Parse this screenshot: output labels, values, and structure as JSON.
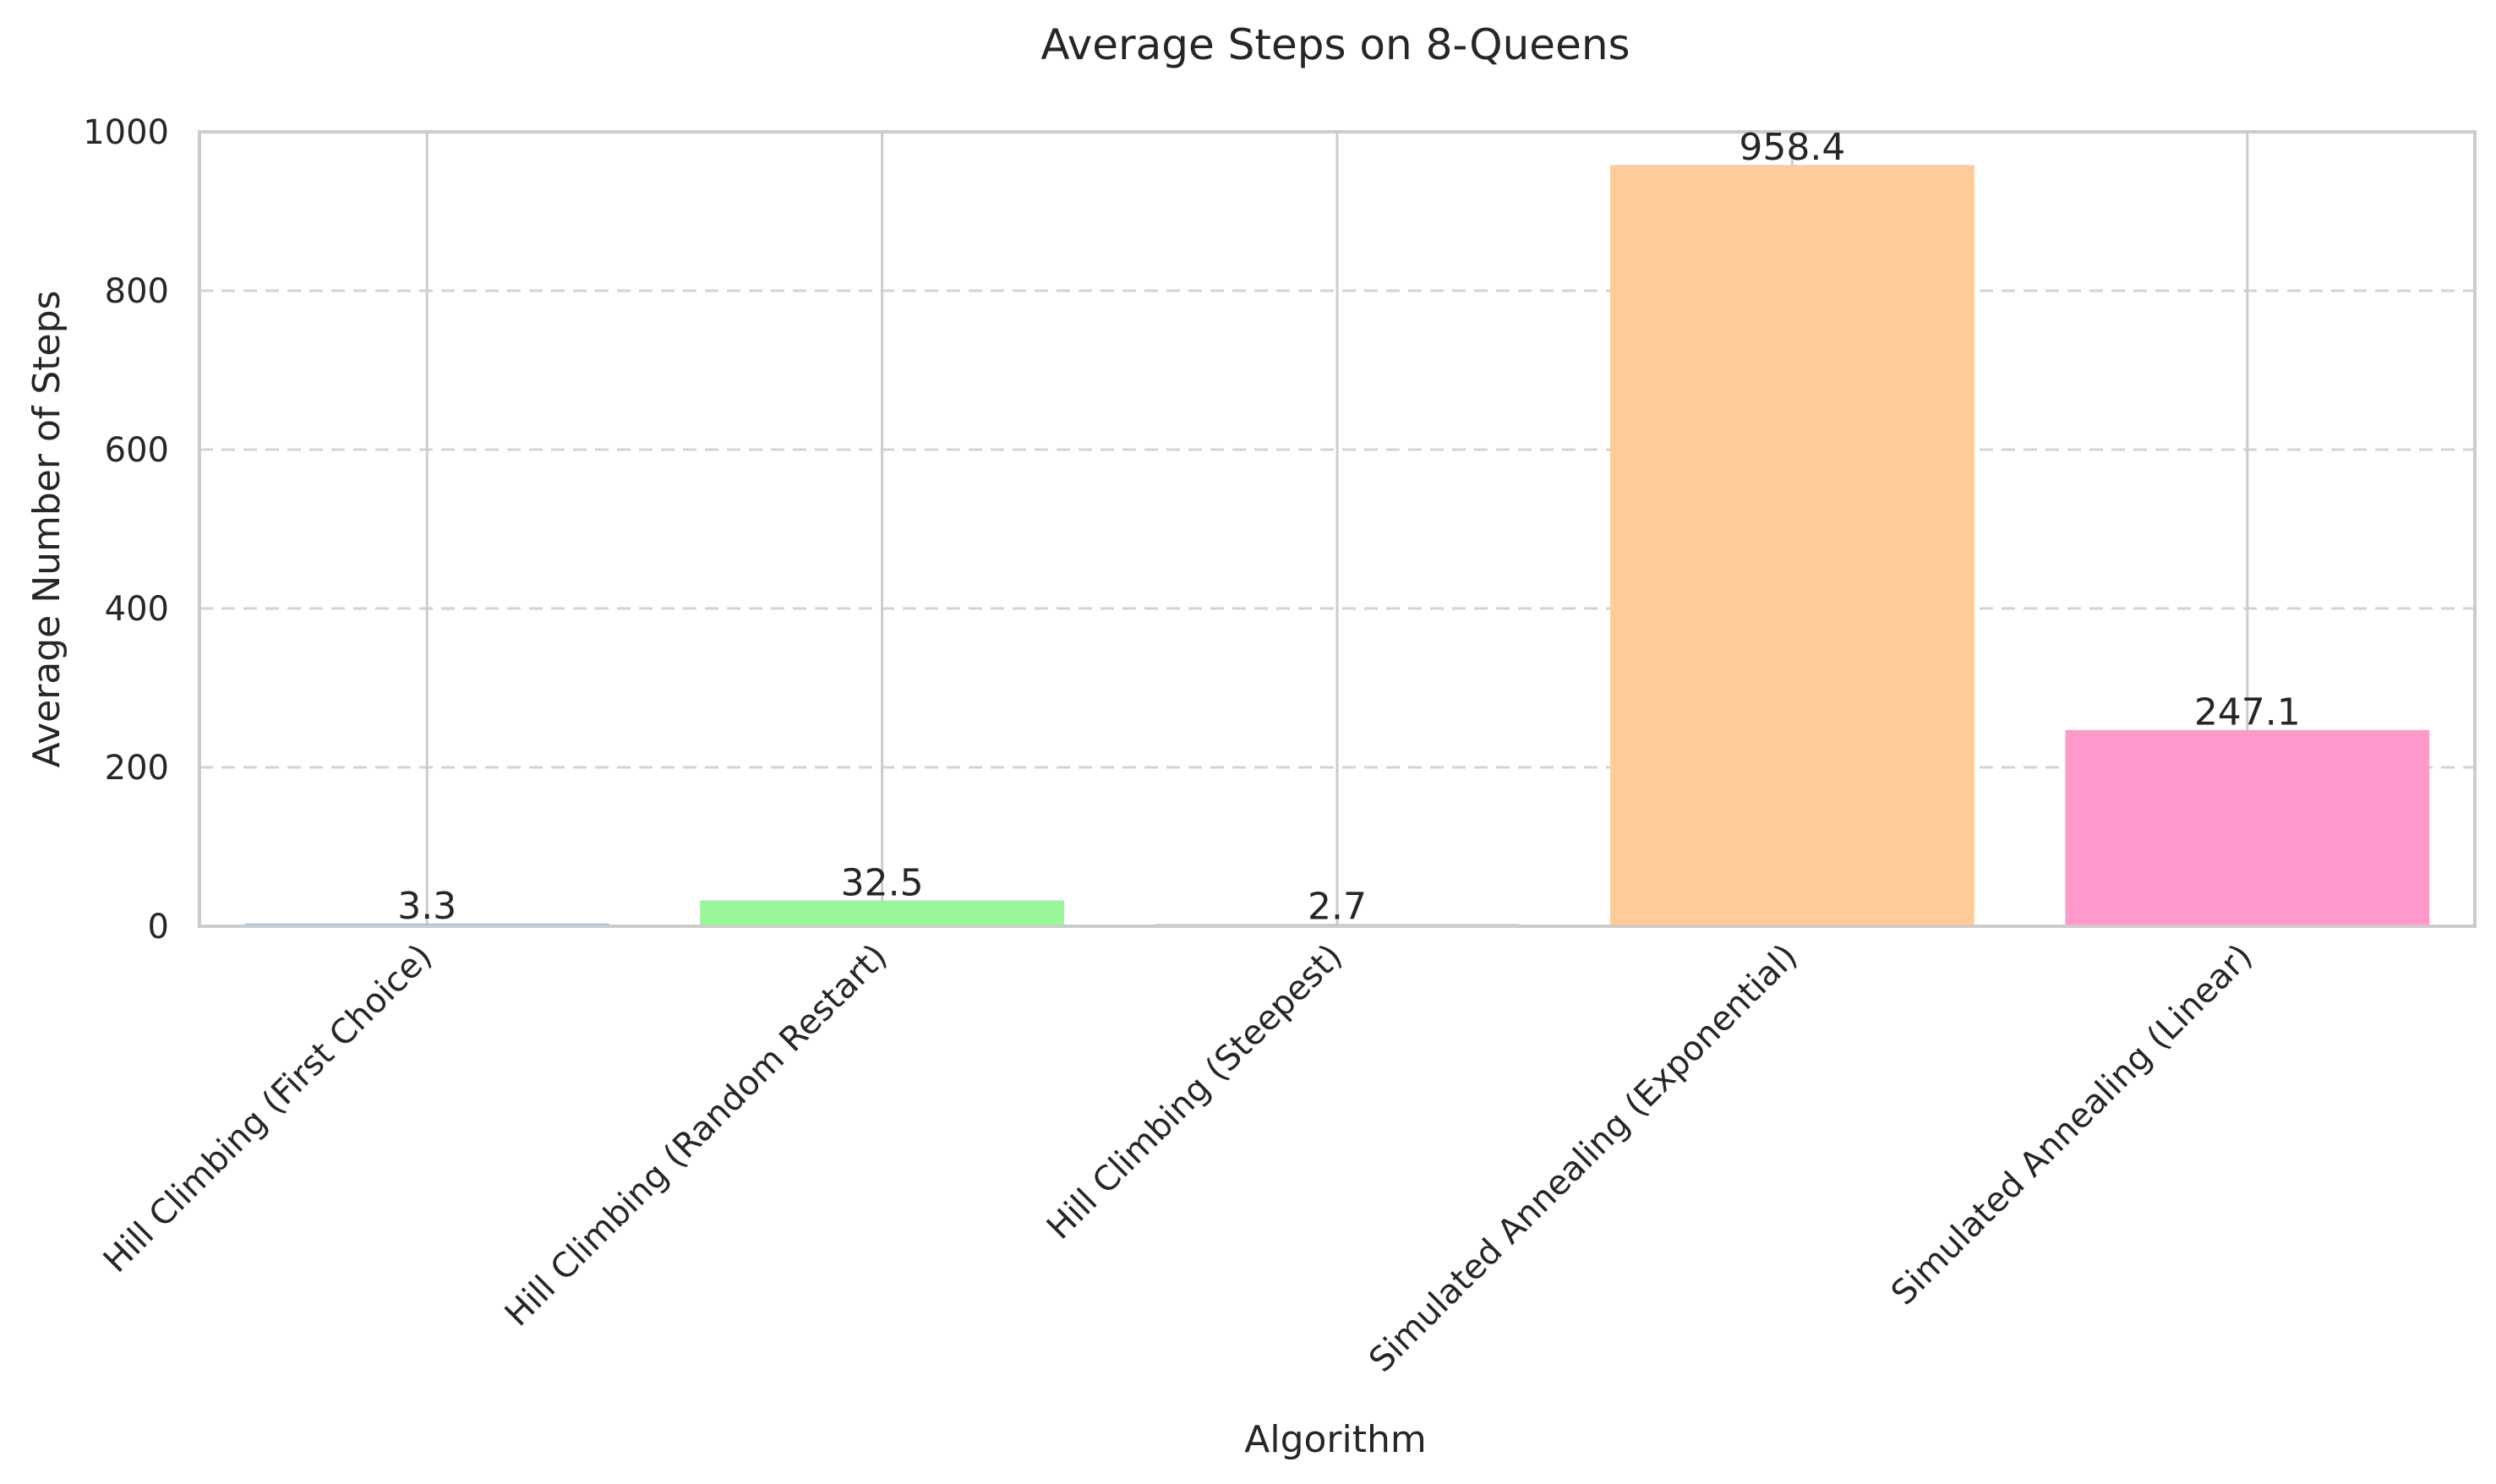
{
  "chart_data": {
    "type": "bar",
    "title": "Average Steps on 8-Queens",
    "xlabel": "Algorithm",
    "ylabel": "Average Number of Steps",
    "categories": [
      "Hill Climbing (First Choice)",
      "Hill Climbing (Random Restart)",
      "Hill Climbing (Steepest)",
      "Simulated Annealing (Exponential)",
      "Simulated Annealing (Linear)"
    ],
    "values": [
      3.3,
      32.5,
      2.7,
      958.4,
      247.1
    ],
    "value_labels": [
      "3.3",
      "32.5",
      "2.7",
      "958.4",
      "247.1"
    ],
    "colors": [
      "#8fb8ef",
      "#99f799",
      "#b0b0b0",
      "#ffcc99",
      "#ff99cc"
    ],
    "ylim": [
      0,
      1000
    ],
    "yticks": [
      0,
      200,
      400,
      600,
      800,
      1000
    ],
    "ytick_labels": [
      "0",
      "200",
      "400",
      "600",
      "800",
      "1000"
    ],
    "grid": true,
    "legend": "none"
  }
}
